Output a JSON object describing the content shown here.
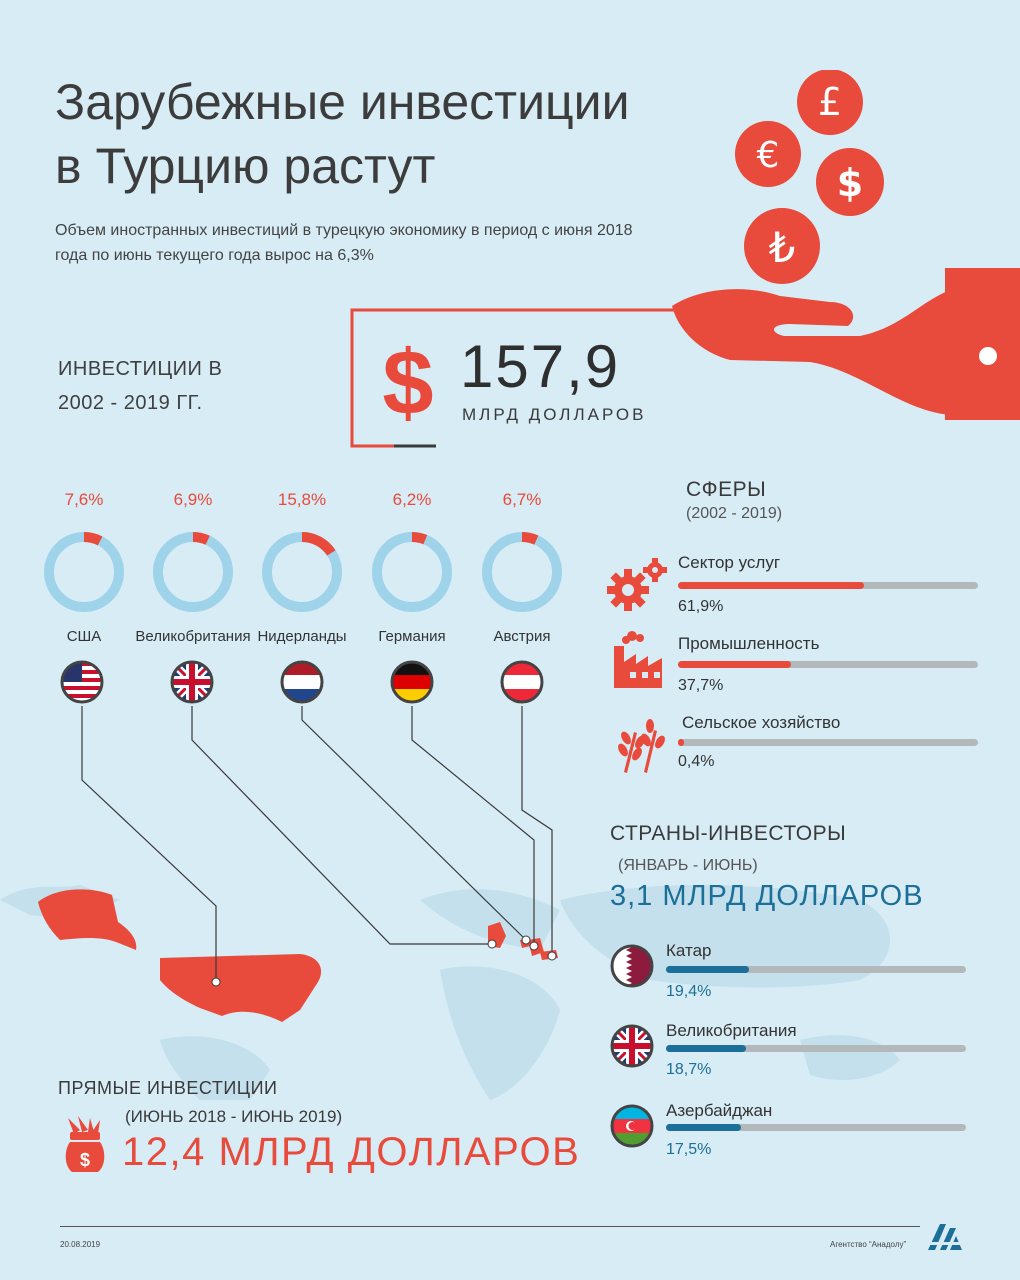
{
  "header": {
    "title_line1": "Зарубежные инвестиции",
    "title_line2": "в Турцию растут",
    "subtitle": "Объем иностранных инвестиций в турецкую экономику в период с июня 2018 года по июнь текущего года вырос на 6,3%"
  },
  "total": {
    "label_line1": "ИНВЕСТИЦИИ В",
    "label_line2": "2002 - 2019 ГГ.",
    "value": "157,9",
    "unit": "МЛРД ДОЛЛАРОВ"
  },
  "countries": [
    {
      "name": "США",
      "pct": "7,6%",
      "share": 0.076
    },
    {
      "name": "Великобритания",
      "pct": "6,9%",
      "share": 0.069
    },
    {
      "name": "Нидерланды",
      "pct": "15,8%",
      "share": 0.158
    },
    {
      "name": "Германия",
      "pct": "6,2%",
      "share": 0.062
    },
    {
      "name": "Австрия",
      "pct": "6,7%",
      "share": 0.067
    }
  ],
  "sectors": {
    "title": "СФЕРЫ",
    "period": "(2002 - 2019)",
    "items": [
      {
        "name": "Сектор услуг",
        "value": "61,9%",
        "share": 0.619
      },
      {
        "name": "Промышленность",
        "value": "37,7%",
        "share": 0.377
      },
      {
        "name": "Сельское хозяйство",
        "value": "0,4%",
        "share": 0.004
      }
    ]
  },
  "investors": {
    "title": "СТРАНЫ-ИНВЕСТОРЫ",
    "period": "(ЯНВАРЬ - ИЮНЬ)",
    "total": "3,1 МЛРД ДОЛЛАРОВ",
    "items": [
      {
        "name": "Катар",
        "value": "19,4%",
        "share": 0.194
      },
      {
        "name": "Великобритания",
        "value": "18,7%",
        "share": 0.187
      },
      {
        "name": "Азербайджан",
        "value": "17,5%",
        "share": 0.175
      }
    ]
  },
  "direct": {
    "title": "ПРЯМЫЕ ИНВЕСТИЦИИ",
    "period": "(ИЮНЬ 2018 - ИЮНЬ 2019)",
    "value": "12,4 МЛРД ДОЛЛАРОВ"
  },
  "footer": {
    "date": "20.08.2019",
    "agency": "Агентство “Анадолу”"
  },
  "colors": {
    "accent_red": "#e84a3c",
    "ring_blue": "#9fd3ea",
    "accent_blue": "#1c6f98",
    "background": "#d7ecf5"
  }
}
